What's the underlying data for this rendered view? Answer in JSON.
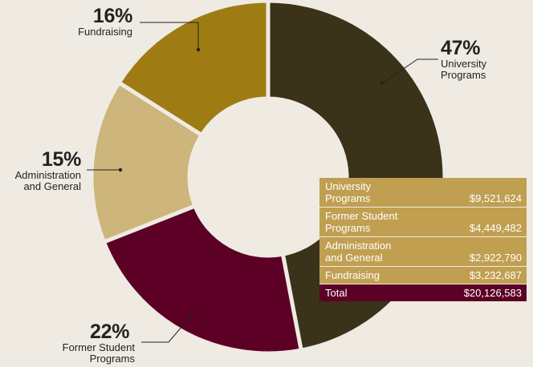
{
  "chart_data": {
    "type": "pie",
    "variant": "donut",
    "slices": [
      {
        "pct_label": "47%",
        "label": "University\nPrograms",
        "value": 47,
        "color": "#3a3219"
      },
      {
        "pct_label": "22%",
        "label": "Former Student\nPrograms",
        "value": 22,
        "color": "#5c0026"
      },
      {
        "pct_label": "15%",
        "label": "Administration\nand General",
        "value": 15,
        "color": "#cdb57b"
      },
      {
        "pct_label": "16%",
        "label": "Fundraising",
        "value": 16,
        "color": "#9e7c13"
      }
    ],
    "table": {
      "rows": [
        {
          "name": "University\nPrograms",
          "amount": "$9,521,624"
        },
        {
          "name": "Former Student\nPrograms",
          "amount": "$4,449,482"
        },
        {
          "name": "Administration\nand General",
          "amount": "$2,922,790"
        },
        {
          "name": "Fundraising",
          "amount": "$3,232,687"
        }
      ],
      "total": {
        "name": "Total",
        "amount": "$20,126,583"
      }
    }
  },
  "colors": {
    "background": "#efebe2",
    "table_row": "#c09f51",
    "table_total": "#5c0026",
    "leader_line": "#222222"
  }
}
